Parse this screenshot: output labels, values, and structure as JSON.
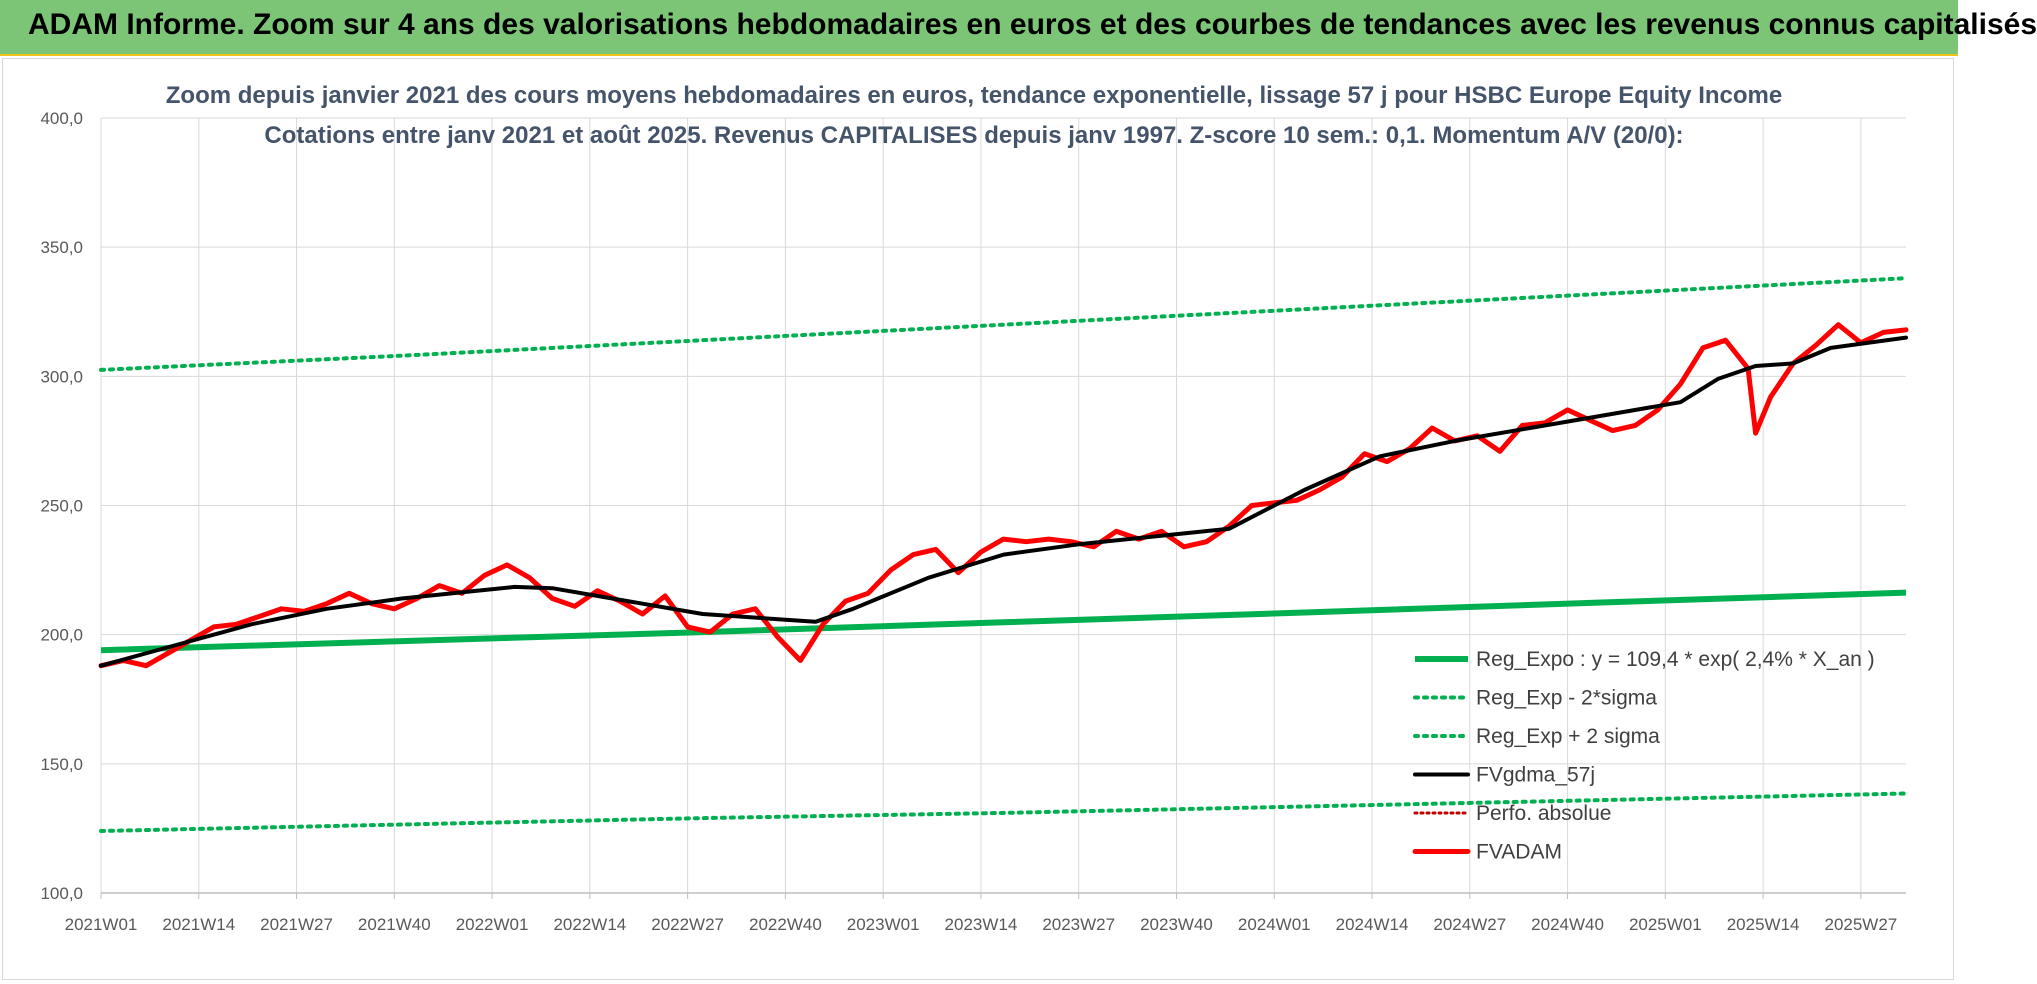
{
  "header": {
    "title": "ADAM Informe. Zoom sur 4 ans des valorisations hebdomadaires en euros et des courbes de tendances avec les revenus connus capitalisés"
  },
  "colors": {
    "header_bg": "#7cc576",
    "trend": "#00b050",
    "bands": "#00b050",
    "smooth": "#000000",
    "price": "#ff0000",
    "perf": "#c00000",
    "grid": "#d9d9d9"
  },
  "chart_data": {
    "type": "line",
    "title_line1": "Zoom depuis janvier 2021 des cours moyens hebdomadaires en euros, tendance exponentielle, lissage 57 j pour HSBC Europe Equity Income",
    "title_line2": "Cotations entre janv 2021 et août 2025. Revenus CAPITALISES depuis janv 1997. Z-score 10 sem.: 0,1. Momentum A/V (20/0):",
    "ylim": [
      100,
      400
    ],
    "ytick_values": [
      100,
      150,
      200,
      250,
      300,
      350,
      400
    ],
    "ytick_labels": [
      "100,0",
      "150,0",
      "200,0",
      "250,0",
      "300,0",
      "350,0",
      "400,0"
    ],
    "x_categories_count": 241,
    "xtick_labels": [
      "2021W01",
      "2021W14",
      "2021W27",
      "2021W40",
      "2022W01",
      "2022W14",
      "2022W27",
      "2022W40",
      "2023W01",
      "2023W14",
      "2023W27",
      "2023W40",
      "2024W01",
      "2024W14",
      "2024W27",
      "2024W40",
      "2025W01",
      "2025W14",
      "2025W27"
    ],
    "xtick_index": [
      0,
      13,
      26,
      39,
      52,
      65,
      78,
      91,
      104,
      117,
      130,
      143,
      156,
      169,
      182,
      195,
      208,
      221,
      234
    ],
    "grid": true,
    "legend_position": "bottom-right",
    "series": [
      {
        "name": "Reg_Expo : y = 109,4 * exp( 2,4% *  X_an )",
        "style": "solid-green",
        "x": [
          0,
          40,
          80,
          120,
          160,
          200,
          240
        ],
        "y": [
          194,
          197.5,
          201,
          204.8,
          208.6,
          212.5,
          216.3
        ]
      },
      {
        "name": "Reg_Exp - 2*sigma",
        "style": "dotted-green",
        "x": [
          0,
          40,
          80,
          120,
          160,
          200,
          240
        ],
        "y": [
          124,
          126.5,
          129,
          131,
          133.5,
          136,
          138.5
        ]
      },
      {
        "name": "Reg_Exp + 2 sigma",
        "style": "dotted-green",
        "x": [
          0,
          40,
          80,
          120,
          160,
          200,
          240
        ],
        "y": [
          302.5,
          308,
          314,
          320,
          326,
          332,
          338
        ]
      },
      {
        "name": "FVgdma_57j",
        "style": "solid-black",
        "x": [
          0,
          10,
          20,
          30,
          40,
          50,
          55,
          60,
          70,
          80,
          90,
          95,
          100,
          110,
          120,
          130,
          140,
          150,
          160,
          170,
          180,
          190,
          200,
          210,
          215,
          220,
          225,
          230,
          240
        ],
        "y": [
          188,
          196,
          204,
          210,
          214,
          217,
          218.5,
          218,
          213,
          208,
          206,
          205,
          210,
          222,
          231,
          235,
          238,
          241,
          256,
          269,
          275,
          280,
          285,
          290,
          299,
          304,
          305,
          311,
          315
        ]
      },
      {
        "name": "Perfo. absolue",
        "style": "dotted-darkred",
        "x": [],
        "y": []
      },
      {
        "name": "FVADAM",
        "style": "solid-red",
        "x": [
          0,
          3,
          6,
          9,
          12,
          15,
          18,
          21,
          24,
          27,
          30,
          33,
          36,
          39,
          42,
          45,
          48,
          51,
          54,
          57,
          60,
          63,
          66,
          69,
          72,
          75,
          78,
          81,
          84,
          87,
          90,
          93,
          96,
          99,
          102,
          105,
          108,
          111,
          114,
          117,
          120,
          123,
          126,
          129,
          132,
          135,
          138,
          141,
          144,
          147,
          150,
          153,
          156,
          159,
          162,
          165,
          168,
          171,
          174,
          177,
          180,
          183,
          186,
          189,
          192,
          195,
          198,
          201,
          204,
          207,
          210,
          213,
          216,
          219,
          220,
          222,
          225,
          228,
          231,
          234,
          237,
          240
        ],
        "y": [
          188,
          190,
          188,
          193,
          198,
          203,
          204,
          207,
          210,
          209,
          212,
          216,
          212,
          210,
          214,
          219,
          216,
          223,
          227,
          222,
          214,
          211,
          217,
          213,
          208,
          215,
          203,
          201,
          208,
          210,
          199,
          190,
          204,
          213,
          216,
          225,
          231,
          233,
          224,
          232,
          237,
          236,
          237,
          236,
          234,
          240,
          237,
          240,
          234,
          236,
          242,
          250,
          251,
          252,
          256,
          261,
          270,
          267,
          272,
          280,
          275,
          277,
          271,
          281,
          282,
          287,
          283,
          279,
          281,
          287,
          297,
          311,
          314,
          303,
          278,
          292,
          305,
          312,
          320,
          313,
          317,
          318
        ]
      }
    ]
  }
}
